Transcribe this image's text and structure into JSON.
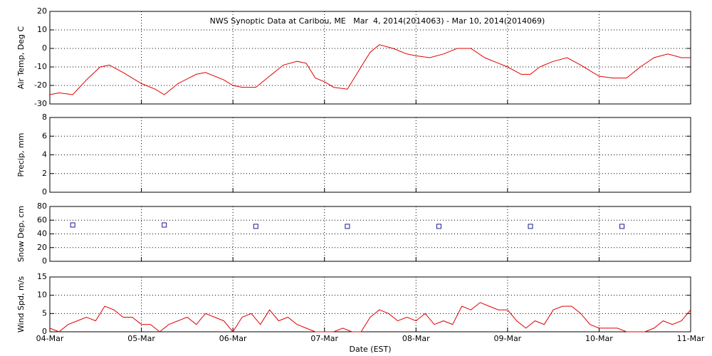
{
  "chart_data": [
    {
      "type": "line",
      "title": "NWS Synoptic Data at Caribou, ME   Mar  4, 2014(2014063) - Mar 10, 2014(2014069)",
      "y_label": "Air Temp, Deg C",
      "ylim": [
        -30,
        20
      ],
      "yticks": [
        -30,
        -20,
        -10,
        0,
        10,
        20
      ],
      "grid": true,
      "series": [
        {
          "color": "#e00000",
          "x": [
            0,
            0.1,
            0.25,
            0.4,
            0.55,
            0.65,
            0.8,
            1.0,
            1.15,
            1.25,
            1.4,
            1.6,
            1.7,
            1.9,
            2.0,
            2.1,
            2.25,
            2.4,
            2.55,
            2.7,
            2.8,
            2.9,
            3.0,
            3.1,
            3.25,
            3.4,
            3.5,
            3.6,
            3.75,
            3.9,
            4.0,
            4.15,
            4.3,
            4.45,
            4.6,
            4.75,
            4.9,
            5.0,
            5.15,
            5.25,
            5.35,
            5.5,
            5.65,
            5.8,
            6.0,
            6.15,
            6.3,
            6.45,
            6.6,
            6.75,
            6.9,
            7.0
          ],
          "values": [
            -25,
            -24,
            -25,
            -17,
            -10,
            -9,
            -13,
            -19,
            -22,
            -25,
            -19,
            -14,
            -13,
            -17,
            -20,
            -21,
            -21,
            -15,
            -9,
            -7,
            -8,
            -16,
            -18,
            -21,
            -22,
            -10,
            -2,
            2,
            0,
            -3,
            -4,
            -5,
            -3,
            0,
            0,
            -5,
            -8,
            -10,
            -14,
            -14,
            -10,
            -7,
            -5,
            -9,
            -15,
            -16,
            -16,
            -10,
            -5,
            -3,
            -5,
            -5
          ]
        }
      ]
    },
    {
      "type": "line",
      "y_label": "Precip, mm",
      "ylim": [
        0,
        8
      ],
      "yticks": [
        0,
        2,
        4,
        6,
        8
      ],
      "grid": true,
      "series": []
    },
    {
      "type": "scatter",
      "y_label": "Snow Dep, cm",
      "ylim": [
        0,
        80
      ],
      "yticks": [
        0,
        20,
        40,
        60,
        80
      ],
      "grid": true,
      "series": [
        {
          "color": "#1a1a8c",
          "x": [
            0.25,
            1.25,
            2.25,
            3.25,
            4.25,
            5.25,
            6.25
          ],
          "values": [
            53,
            53,
            51,
            51,
            51,
            51,
            51
          ]
        }
      ]
    },
    {
      "type": "line",
      "y_label": "Wind Spd, m/s",
      "x_label": "Date (EST)",
      "xlim": [
        0,
        7
      ],
      "xticks": [
        {
          "value": 0,
          "label": "04-Mar"
        },
        {
          "value": 1,
          "label": "05-Mar"
        },
        {
          "value": 2,
          "label": "06-Mar"
        },
        {
          "value": 3,
          "label": "07-Mar"
        },
        {
          "value": 4,
          "label": "08-Mar"
        },
        {
          "value": 5,
          "label": "09-Mar"
        },
        {
          "value": 6,
          "label": "10-Mar"
        },
        {
          "value": 7,
          "label": "11-Mar"
        }
      ],
      "ylim": [
        0,
        15
      ],
      "yticks": [
        0,
        5,
        10,
        15
      ],
      "grid": true,
      "series": [
        {
          "color": "#e00000",
          "x": [
            0,
            0.1,
            0.2,
            0.3,
            0.4,
            0.5,
            0.6,
            0.7,
            0.8,
            0.9,
            1.0,
            1.1,
            1.2,
            1.3,
            1.4,
            1.5,
            1.6,
            1.7,
            1.8,
            1.9,
            2.0,
            2.1,
            2.2,
            2.3,
            2.4,
            2.5,
            2.6,
            2.7,
            2.8,
            2.9,
            3.0,
            3.1,
            3.2,
            3.3,
            3.4,
            3.5,
            3.6,
            3.7,
            3.8,
            3.9,
            4.0,
            4.1,
            4.2,
            4.3,
            4.4,
            4.5,
            4.6,
            4.7,
            4.8,
            4.9,
            5.0,
            5.1,
            5.2,
            5.3,
            5.4,
            5.5,
            5.6,
            5.7,
            5.8,
            5.9,
            6.0,
            6.1,
            6.2,
            6.3,
            6.4,
            6.5,
            6.6,
            6.7,
            6.8,
            6.9,
            7.0
          ],
          "values": [
            1,
            0,
            2,
            3,
            4,
            3,
            7,
            6,
            4,
            4,
            2,
            2,
            0,
            2,
            3,
            4,
            2,
            5,
            4,
            3,
            0,
            4,
            5,
            2,
            6,
            3,
            4,
            2,
            1,
            0,
            0,
            0,
            1,
            0,
            0,
            4,
            6,
            5,
            3,
            4,
            3,
            5,
            2,
            3,
            2,
            7,
            6,
            8,
            7,
            6,
            6,
            3,
            1,
            3,
            2,
            6,
            7,
            7,
            5,
            2,
            1,
            1,
            1,
            0,
            0,
            0,
            1,
            3,
            2,
            3,
            6
          ]
        }
      ]
    }
  ]
}
